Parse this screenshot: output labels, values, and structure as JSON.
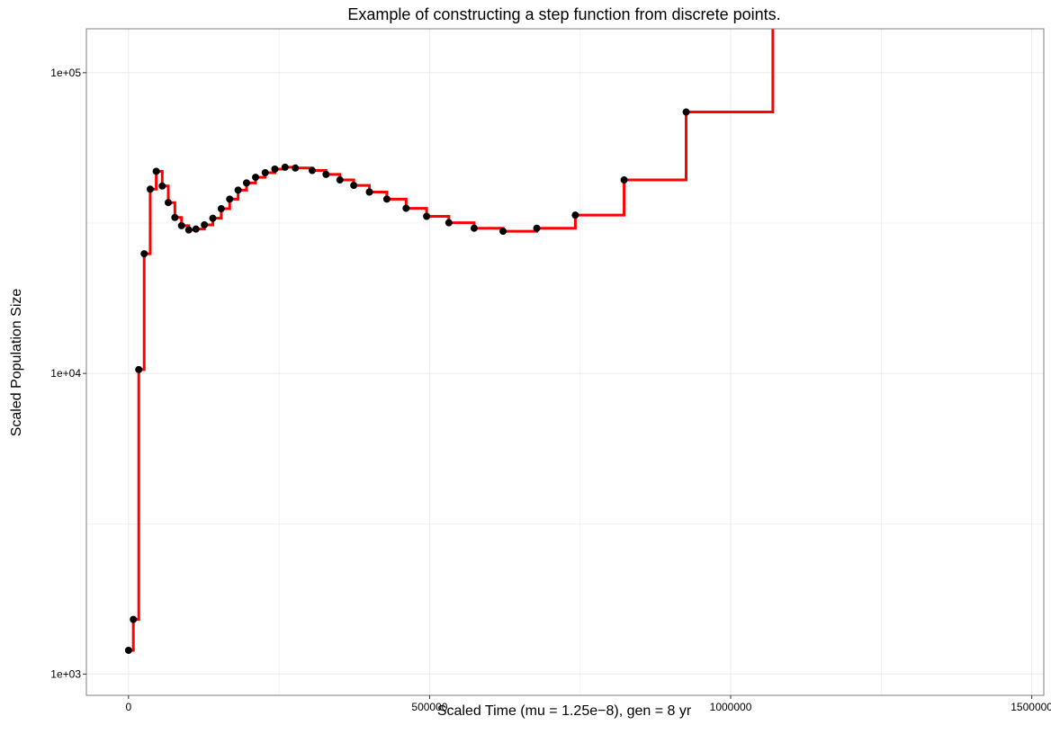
{
  "chart_data": {
    "type": "line",
    "title": "Example of constructing a step function from discrete points.",
    "xlabel": "Scaled Time (mu = 1.25e−8), gen = 8 yr",
    "ylabel": "Scaled Population Size",
    "xlim": [
      -70000,
      1520000
    ],
    "ylim": [
      850,
      140000
    ],
    "yscale": "log",
    "grid": true,
    "x_ticks": [
      0,
      500000,
      1000000,
      1500000
    ],
    "x_tick_labels": [
      "0",
      "500000",
      "1000000",
      "1500000"
    ],
    "y_ticks": [
      1000,
      10000,
      100000
    ],
    "y_tick_labels": [
      "1e+03",
      "1e+04",
      "1e+05"
    ],
    "colors": {
      "step_line": "#ff0000",
      "points": "#000000",
      "grid": "#ebebeb",
      "panel_border": "#7f7f7f"
    },
    "series": [
      {
        "type": "scatter",
        "points": [
          [
            0,
            1200
          ],
          [
            8000,
            1520
          ],
          [
            17000,
            10300
          ],
          [
            26000,
            25000
          ],
          [
            36000,
            41000
          ],
          [
            46000,
            47000
          ],
          [
            56000,
            42000
          ],
          [
            66000,
            37000
          ],
          [
            77000,
            33000
          ],
          [
            88000,
            31000
          ],
          [
            100000,
            30000
          ],
          [
            112000,
            30200
          ],
          [
            126000,
            31200
          ],
          [
            140000,
            32800
          ],
          [
            154000,
            35300
          ],
          [
            168000,
            38000
          ],
          [
            182000,
            40700
          ],
          [
            196000,
            43000
          ],
          [
            211000,
            44900
          ],
          [
            227000,
            46500
          ],
          [
            243000,
            47800
          ],
          [
            260000,
            48500
          ],
          [
            277000,
            48200
          ],
          [
            305000,
            47300
          ],
          [
            328000,
            45900
          ],
          [
            351000,
            44000
          ],
          [
            374000,
            42200
          ],
          [
            400000,
            40100
          ],
          [
            429000,
            38000
          ],
          [
            461000,
            35400
          ],
          [
            495000,
            33300
          ],
          [
            532000,
            31700
          ],
          [
            574000,
            30400
          ],
          [
            622000,
            29700
          ],
          [
            678000,
            30400
          ],
          [
            742000,
            33600
          ],
          [
            823000,
            44000
          ],
          [
            926000,
            74000
          ]
        ]
      },
      {
        "type": "step",
        "end_x": 1070000,
        "end_y": 145000
      }
    ]
  }
}
